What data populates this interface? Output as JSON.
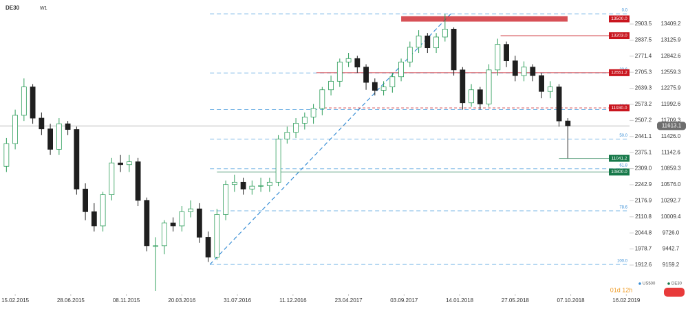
{
  "chart_data": {
    "type": "candlestick",
    "symbol": "DE30",
    "timeframe": "W1",
    "countdown": "01d 12h",
    "x": [
      -3,
      0,
      3,
      6,
      9,
      12,
      15,
      18,
      21,
      24,
      27,
      30,
      33,
      36,
      39,
      42,
      45,
      48,
      51,
      54,
      57,
      60,
      63,
      66,
      69,
      72,
      75,
      78,
      81,
      84,
      87,
      90,
      93,
      96,
      99,
      102,
      105,
      108,
      111,
      114,
      117,
      120,
      123,
      126,
      129,
      132,
      135,
      138,
      141,
      144,
      147,
      150,
      153,
      156,
      159,
      162,
      165,
      168,
      171,
      174,
      177,
      180,
      183,
      186,
      189
    ],
    "open": [
      10900,
      11300,
      11800,
      12300,
      11750,
      11560,
      11200,
      11650,
      11550,
      10500,
      10100,
      9850,
      10400,
      10960,
      10930,
      10980,
      10300,
      9500,
      9500,
      9900,
      9850,
      10100,
      10150,
      9650,
      9300,
      10050,
      10580,
      10620,
      10500,
      10550,
      10560,
      10620,
      11380,
      11500,
      11660,
      11770,
      11920,
      12250,
      12400,
      12740,
      12800,
      12650,
      12380,
      12240,
      12300,
      12480,
      12740,
      13000,
      13200,
      12990,
      13180,
      13320,
      12600,
      12020,
      12250,
      12000,
      12600,
      13050,
      12760,
      12500,
      12650,
      12500,
      12220,
      12300,
      11700
    ],
    "high": [
      11400,
      11900,
      12450,
      12350,
      11850,
      11650,
      11750,
      11700,
      11600,
      10600,
      10250,
      10450,
      11050,
      11100,
      11100,
      11050,
      10350,
      9650,
      9950,
      10000,
      10200,
      10300,
      10250,
      9750,
      10150,
      10650,
      10750,
      10700,
      10650,
      10700,
      10700,
      11450,
      11600,
      11750,
      11850,
      12000,
      12300,
      12500,
      12800,
      12900,
      12850,
      12700,
      12450,
      12400,
      12550,
      12800,
      13100,
      13300,
      13250,
      13250,
      13590,
      13350,
      12650,
      12350,
      12300,
      12700,
      13150,
      13100,
      12850,
      12750,
      12700,
      12550,
      12400,
      12350,
      11750
    ],
    "low": [
      10800,
      11200,
      11700,
      11650,
      11450,
      11100,
      11100,
      11450,
      10400,
      9950,
      9750,
      9750,
      10300,
      10800,
      10800,
      10200,
      9400,
      8700,
      9350,
      9750,
      9750,
      10000,
      9550,
      9214,
      9250,
      9950,
      10450,
      10400,
      10400,
      10450,
      10450,
      10550,
      11300,
      11400,
      11550,
      11650,
      11800,
      12150,
      12300,
      12650,
      12550,
      12250,
      12150,
      12150,
      12200,
      12400,
      12650,
      12900,
      12900,
      12900,
      13100,
      12500,
      11900,
      11950,
      11900,
      11950,
      12500,
      12650,
      12400,
      12400,
      12400,
      12100,
      12100,
      11600,
      11041
    ],
    "close": [
      11300,
      11800,
      12300,
      11750,
      11560,
      11200,
      11650,
      11550,
      10500,
      10100,
      9850,
      10400,
      10960,
      10930,
      10980,
      10300,
      9500,
      9500,
      9900,
      9850,
      10100,
      10150,
      9650,
      9300,
      10050,
      10580,
      10620,
      10500,
      10550,
      10560,
      10620,
      11380,
      11500,
      11660,
      11770,
      11920,
      12250,
      12400,
      12740,
      12800,
      12650,
      12380,
      12240,
      12300,
      12480,
      12740,
      13000,
      13200,
      12990,
      13180,
      13320,
      12600,
      12020,
      12250,
      12000,
      12600,
      13050,
      12760,
      12500,
      12650,
      12500,
      12220,
      12300,
      11700,
      11613
    ],
    "up_color": "#2e9e5b",
    "down_color": "#1f1f1f",
    "xlim": [
      -5.2,
      210.1
    ],
    "xticks": [
      {
        "value": 0,
        "label": "15.02.2015"
      },
      {
        "value": 19,
        "label": "28.06.2015"
      },
      {
        "value": 38,
        "label": "08.11.2015"
      },
      {
        "value": 57,
        "label": "20.03.2016"
      },
      {
        "value": 76,
        "label": "31.07.2016"
      },
      {
        "value": 95,
        "label": "11.12.2016"
      },
      {
        "value": 114,
        "label": "23.04.2017"
      },
      {
        "value": 133,
        "label": "03.09.2017"
      },
      {
        "value": 152,
        "label": "14.01.2018"
      },
      {
        "value": 171,
        "label": "27.05.2018"
      },
      {
        "value": 190,
        "label": "07.10.2018"
      },
      {
        "value": 209,
        "label": "16.02.2019"
      }
    ],
    "ylim": [
      8687,
      13833
    ],
    "yticks": [
      13409.2,
      13125.9,
      12842.6,
      12559.3,
      12275.9,
      11992.6,
      11709.3,
      {
        "value": 11426,
        "label": "11426.0"
      },
      11142.6,
      10859.3,
      {
        "value": 10576,
        "label": "10576.0"
      },
      10292.7,
      10009.4,
      {
        "value": 9726,
        "label": "9726.0"
      },
      9442.7,
      9159.2
    ],
    "y2lim": [
      1802.5,
      3002.3
    ],
    "y2ticks": [
      2903.5,
      2837.5,
      2771.4,
      2705.3,
      2639.3,
      2573.2,
      2507.2,
      2441.1,
      2375.1,
      {
        "value": 2309,
        "label": "2309.0"
      },
      2242.9,
      2176.9,
      2110.8,
      2044.8,
      1978.7,
      1912.6
    ],
    "levels": [
      {
        "value": 13500,
        "label": "13500.0",
        "color": "#c9151e",
        "x0": 132
      },
      {
        "value": 13203,
        "label": "13203.0",
        "color": "#c9151e",
        "x0": 166
      },
      {
        "value": 12551.2,
        "label": "12551.2",
        "color": "#c9151e",
        "x0": 103
      },
      {
        "value": 11930,
        "label": "11930.0",
        "color": "#c9151e",
        "x0": 104
      },
      {
        "value": 11041.2,
        "label": "11041.2",
        "color": "#17794a",
        "x0": 186
      },
      {
        "value": 10800,
        "label": "10800.0",
        "color": "#17794a",
        "x0": 69
      }
    ],
    "last_price": {
      "value": 11613.1,
      "label": "11613.1"
    },
    "fib_levels": [
      {
        "value": 13590,
        "label": "0.0"
      },
      {
        "value": 12547,
        "label": "23.6"
      },
      {
        "value": 11902,
        "label": "38.2"
      },
      {
        "value": 11380,
        "label": "50.0"
      },
      {
        "value": 10858,
        "label": "61.8"
      },
      {
        "value": 10116,
        "label": "78.6"
      },
      {
        "value": 9170,
        "label": "100.0"
      }
    ],
    "fib_x": [
      66.6,
      149
    ],
    "legend": [
      {
        "name": "US500",
        "color": "#3a8fd6"
      },
      {
        "name": "DE30",
        "color": "#17794a"
      }
    ]
  }
}
